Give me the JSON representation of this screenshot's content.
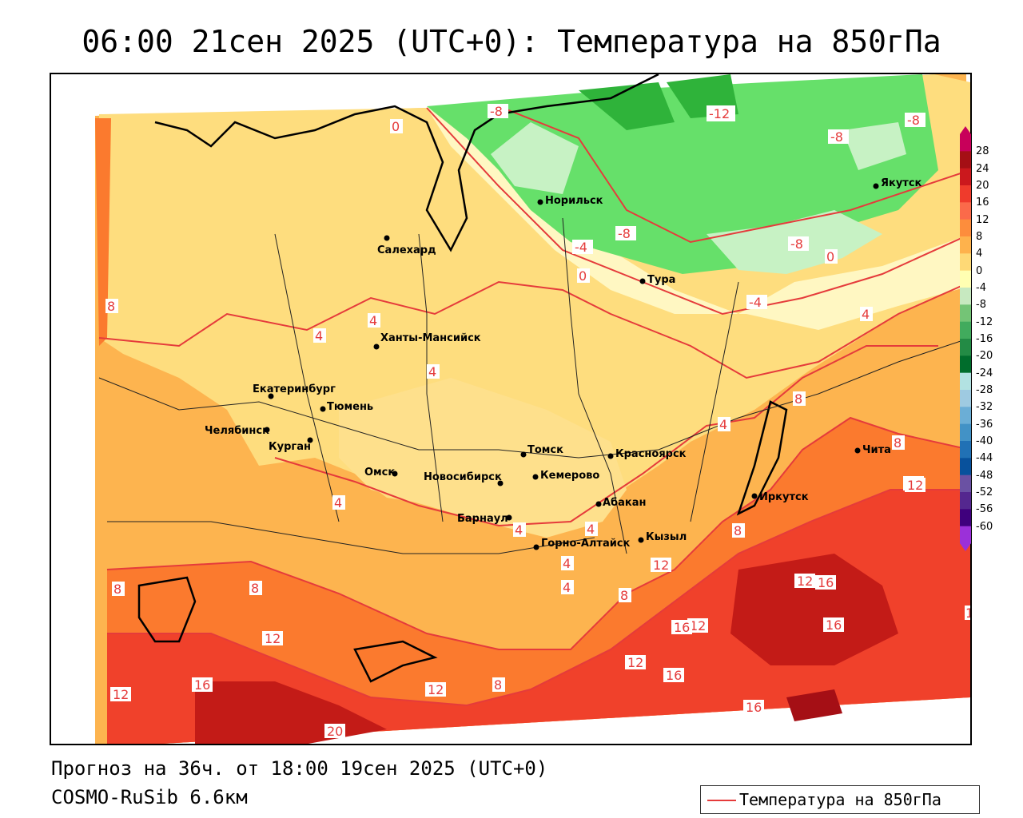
{
  "title": "06:00 21сен 2025 (UTC+0): Температура на 850гПа",
  "footer": {
    "forecast": "Прогноз на 36ч. от 18:00 19сен 2025 (UTC+0)",
    "model": "COSMO-RuSib 6.6км"
  },
  "legend": {
    "label": "Температура на 850гПа",
    "line_color": "#e53b3b"
  },
  "colorbar": {
    "ticks": [
      "28",
      "24",
      "20",
      "16",
      "12",
      "8",
      "4",
      "0",
      "-4",
      "-8",
      "-12",
      "-16",
      "-20",
      "-24",
      "-28",
      "-32",
      "-36",
      "-40",
      "-44",
      "-48",
      "-52",
      "-56",
      "-60"
    ],
    "colors": [
      "#c8005a",
      "#a50f15",
      "#cb181d",
      "#ef3b2c",
      "#fb6a4a",
      "#fd8d3c",
      "#feb24c",
      "#fed976",
      "#ffffb2",
      "#c7e9c0",
      "#74c476",
      "#41ab5d",
      "#238b45",
      "#006d2c",
      "#b2e2e2",
      "#9ecae1",
      "#6baed6",
      "#4292c6",
      "#2171b5",
      "#08519c",
      "#6a51a3",
      "#54278f",
      "#3f007d",
      "#9b30d9"
    ]
  },
  "cities": [
    {
      "name": "Норильск"
    },
    {
      "name": "Якутск"
    },
    {
      "name": "Салехард"
    },
    {
      "name": "Тура"
    },
    {
      "name": "Ханты-Мансийск"
    },
    {
      "name": "Екатеринбург"
    },
    {
      "name": "Тюмень"
    },
    {
      "name": "Челябинск"
    },
    {
      "name": "Курган"
    },
    {
      "name": "Омск"
    },
    {
      "name": "Новосибирск"
    },
    {
      "name": "Томск"
    },
    {
      "name": "Кемерово"
    },
    {
      "name": "Красноярск"
    },
    {
      "name": "Барнаул"
    },
    {
      "name": "Абакан"
    },
    {
      "name": "Иркутск"
    },
    {
      "name": "Чита"
    },
    {
      "name": "Горно-Алтайск"
    },
    {
      "name": "Кызыл"
    }
  ],
  "isotherm_labels": [
    "-8",
    "-12",
    "-8",
    "-8",
    "0",
    "-8",
    "-8",
    "-4",
    "0",
    "-4",
    "0",
    "4",
    "4",
    "4",
    "4",
    "8",
    "8",
    "4",
    "8",
    "12",
    "12",
    "16",
    "16",
    "12",
    "16",
    "12",
    "16",
    "12",
    "8",
    "8",
    "12",
    "16",
    "16",
    "12",
    "20",
    "12",
    "8",
    "4",
    "4",
    "4",
    "4",
    "8",
    "12",
    "8",
    "4",
    "1"
  ]
}
